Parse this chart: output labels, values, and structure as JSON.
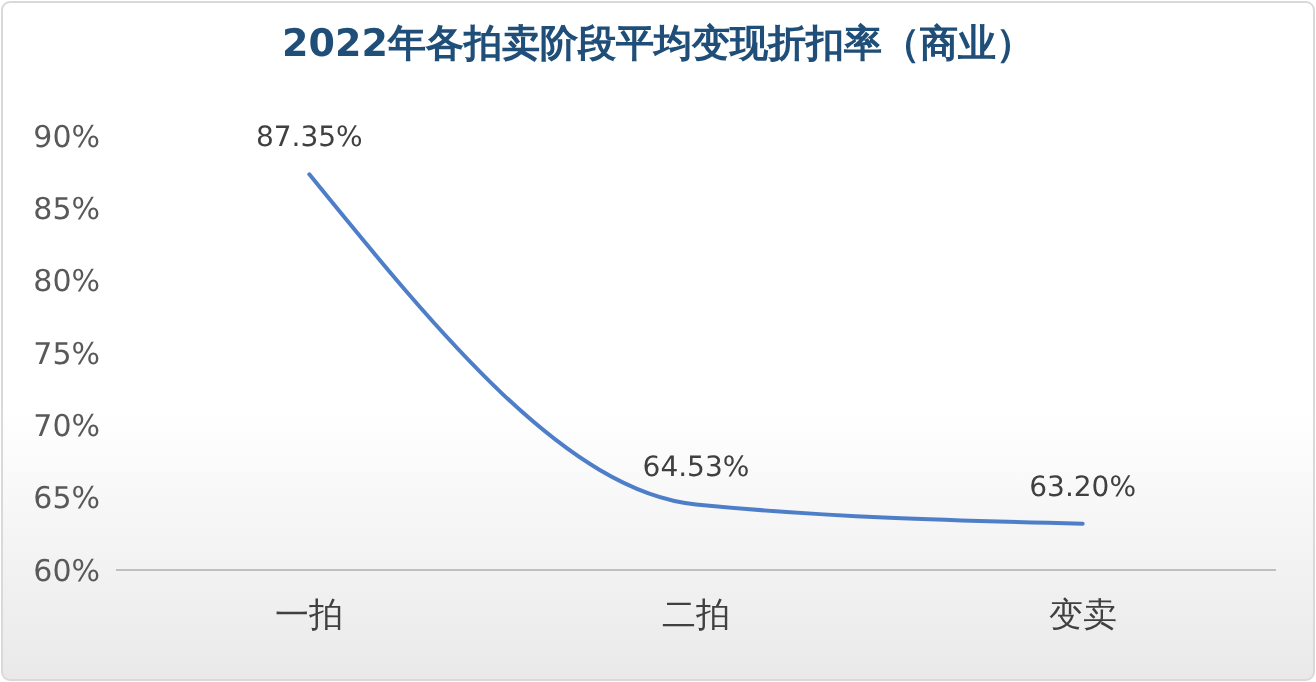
{
  "chart_data": {
    "type": "line",
    "title": "2022年各拍卖阶段平均变现折扣率（商业）",
    "categories": [
      "一拍",
      "二拍",
      "变卖"
    ],
    "series": [
      {
        "color": "#4f7ec9",
        "values": [
          87.35,
          64.53,
          63.2
        ],
        "value_labels": [
          "87.35%",
          "64.53%",
          "63.20%"
        ]
      }
    ],
    "ylim": [
      60,
      90
    ],
    "yticks": [
      {
        "value": 60,
        "label": "60%"
      },
      {
        "value": 65,
        "label": "65%"
      },
      {
        "value": 70,
        "label": "70%"
      },
      {
        "value": 75,
        "label": "75%"
      },
      {
        "value": 80,
        "label": "80%"
      },
      {
        "value": 85,
        "label": "85%"
      },
      {
        "value": 90,
        "label": "90%"
      }
    ],
    "grid": false,
    "marker": "none",
    "line_style": "solid"
  }
}
